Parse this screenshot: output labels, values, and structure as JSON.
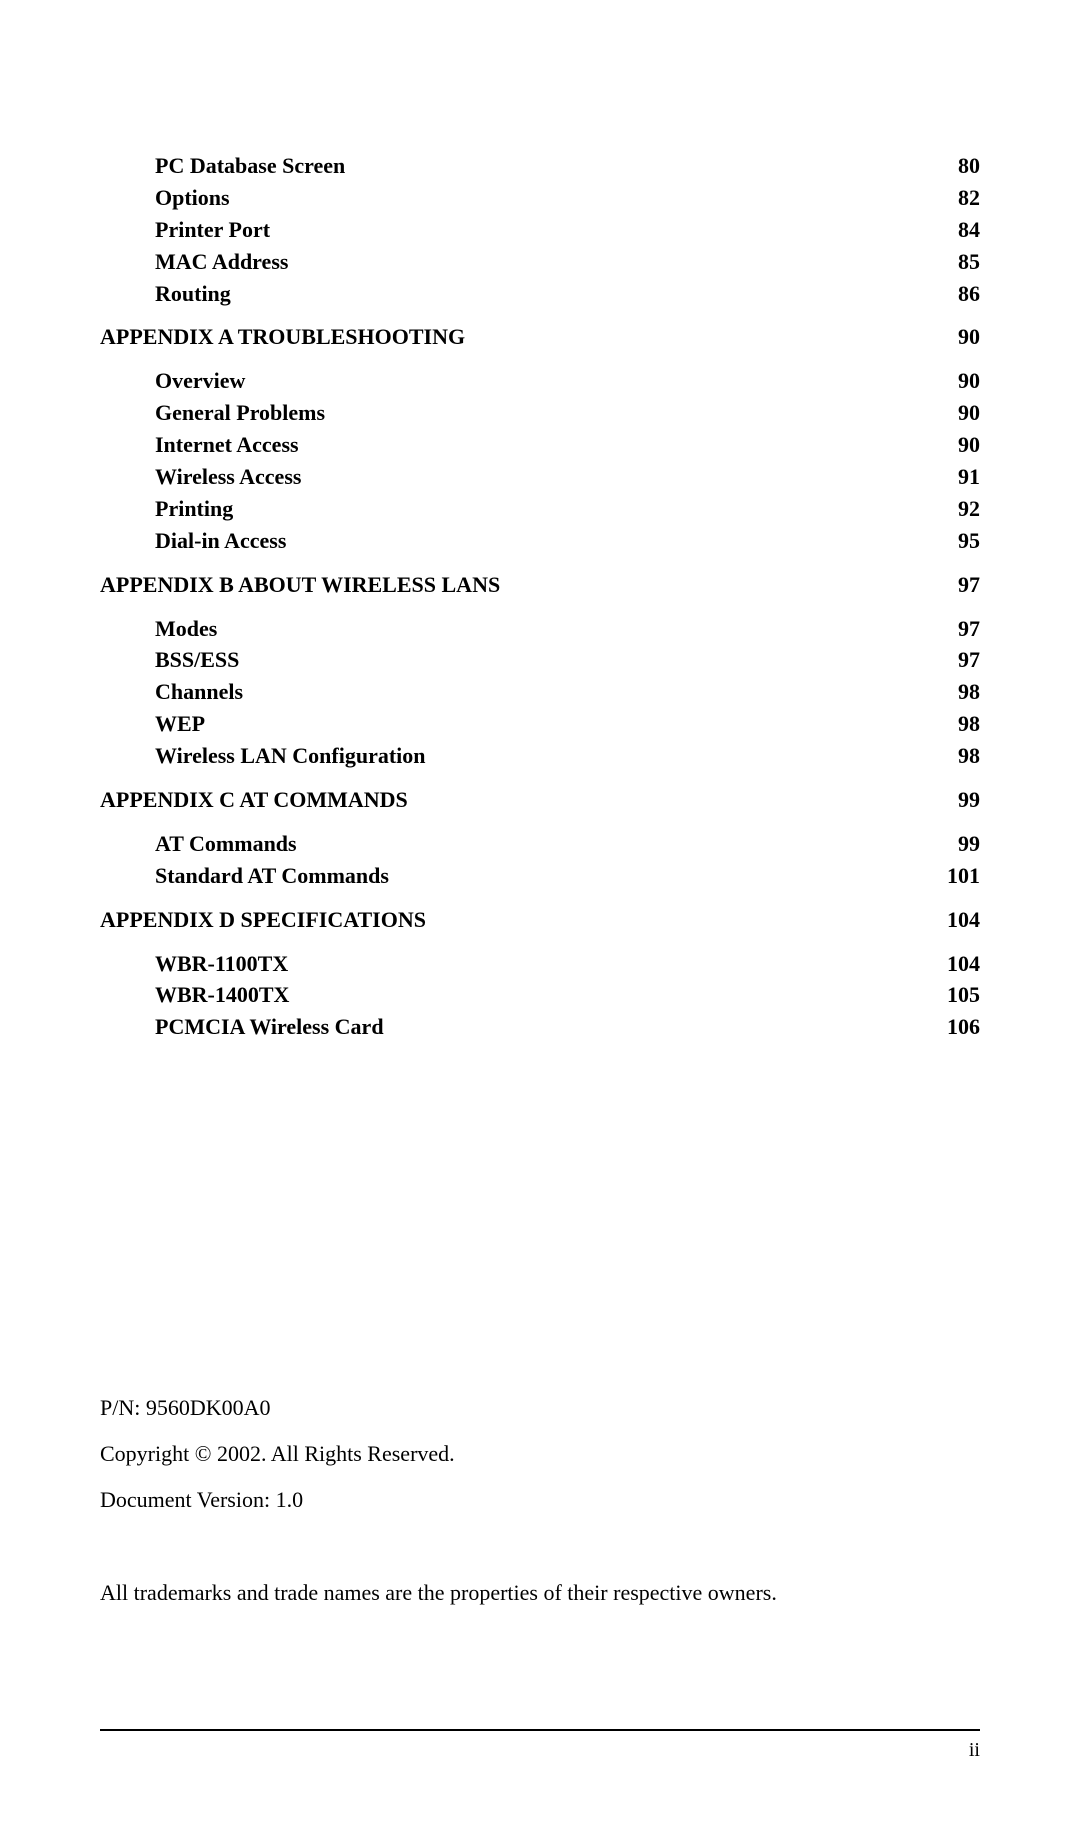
{
  "toc": {
    "entries": [
      {
        "level": 2,
        "title": "PC Database Screen",
        "page": "80"
      },
      {
        "level": 2,
        "title": "Options",
        "page": "82"
      },
      {
        "level": 2,
        "title": "Printer Port",
        "page": "84"
      },
      {
        "level": 2,
        "title": "MAC Address",
        "page": "85"
      },
      {
        "level": 2,
        "title": "Routing",
        "page": "86"
      },
      {
        "level": 1,
        "title": "APPENDIX A TROUBLESHOOTING",
        "page": "90"
      },
      {
        "level": 2,
        "title": "Overview",
        "page": "90"
      },
      {
        "level": 2,
        "title": "General Problems",
        "page": "90"
      },
      {
        "level": 2,
        "title": "Internet Access",
        "page": "90"
      },
      {
        "level": 2,
        "title": "Wireless Access",
        "page": "91"
      },
      {
        "level": 2,
        "title": "Printing",
        "page": "92"
      },
      {
        "level": 2,
        "title": "Dial-in Access",
        "page": "95"
      },
      {
        "level": 1,
        "title": "APPENDIX B ABOUT WIRELESS LANS",
        "page": "97"
      },
      {
        "level": 2,
        "title": "Modes",
        "page": "97"
      },
      {
        "level": 2,
        "title": "BSS/ESS",
        "page": "97"
      },
      {
        "level": 2,
        "title": "Channels",
        "page": "98"
      },
      {
        "level": 2,
        "title": "WEP",
        "page": "98"
      },
      {
        "level": 2,
        "title": "Wireless LAN Configuration",
        "page": "98"
      },
      {
        "level": 1,
        "title": "APPENDIX C AT COMMANDS",
        "page": "99"
      },
      {
        "level": 2,
        "title": "AT Commands",
        "page": "99"
      },
      {
        "level": 2,
        "title": "Standard AT Commands",
        "page": "101"
      },
      {
        "level": 1,
        "title": "APPENDIX D SPECIFICATIONS",
        "page": "104"
      },
      {
        "level": 2,
        "title": "WBR-1100TX",
        "page": "104"
      },
      {
        "level": 2,
        "title": "WBR-1400TX",
        "page": "105"
      },
      {
        "level": 2,
        "title": "PCMCIA Wireless Card",
        "page": "106"
      }
    ]
  },
  "footer": {
    "part_number": "P/N: 9560DK00A0",
    "copyright": "Copyright © 2002. All Rights Reserved.",
    "version": "Document Version: 1.0",
    "trademarks": "All trademarks and trade names are the properties of their respective owners."
  },
  "page_number": "ii",
  "colors": {
    "text": "#000000",
    "background": "#ffffff",
    "rule": "#000000"
  },
  "typography": {
    "font_family": "Times New Roman",
    "toc_fontsize": 22,
    "toc_fontweight": "bold",
    "footer_fontsize": 22,
    "page_number_fontsize": 20
  }
}
